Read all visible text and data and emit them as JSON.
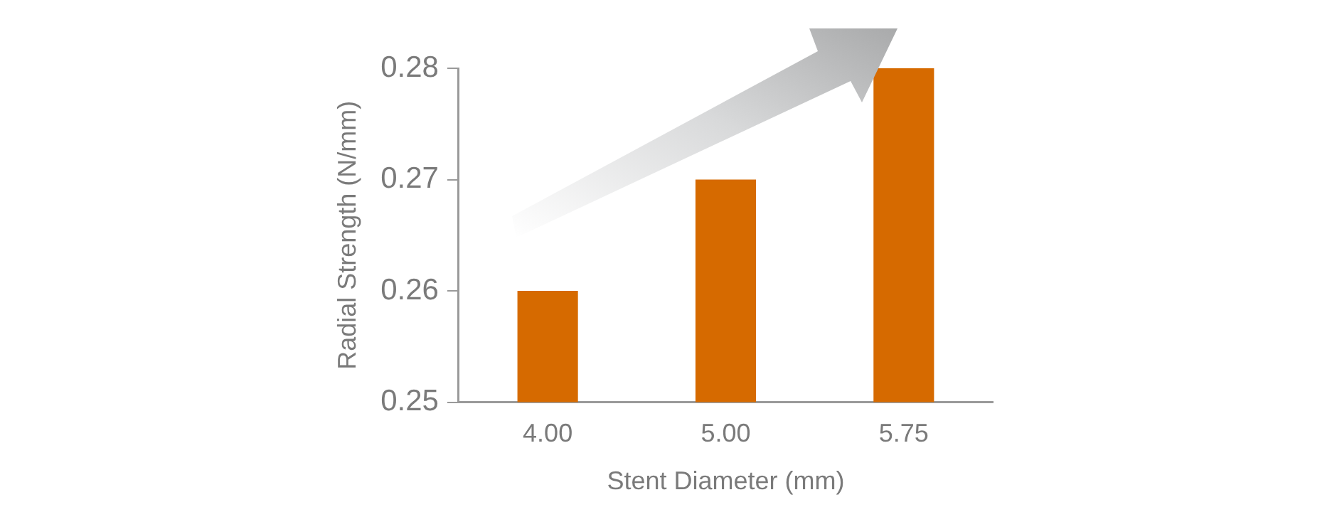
{
  "chart_data": {
    "type": "bar",
    "categories": [
      "4.00",
      "5.00",
      "5.75"
    ],
    "values": [
      0.26,
      0.27,
      0.28
    ],
    "color": "#d66a00",
    "xlabel": "Stent Diameter (mm)",
    "ylabel": "Radial Strength (N/mm)",
    "ylim": [
      0.25,
      0.28
    ],
    "yticks": [
      0.25,
      0.26,
      0.27,
      0.28
    ]
  }
}
